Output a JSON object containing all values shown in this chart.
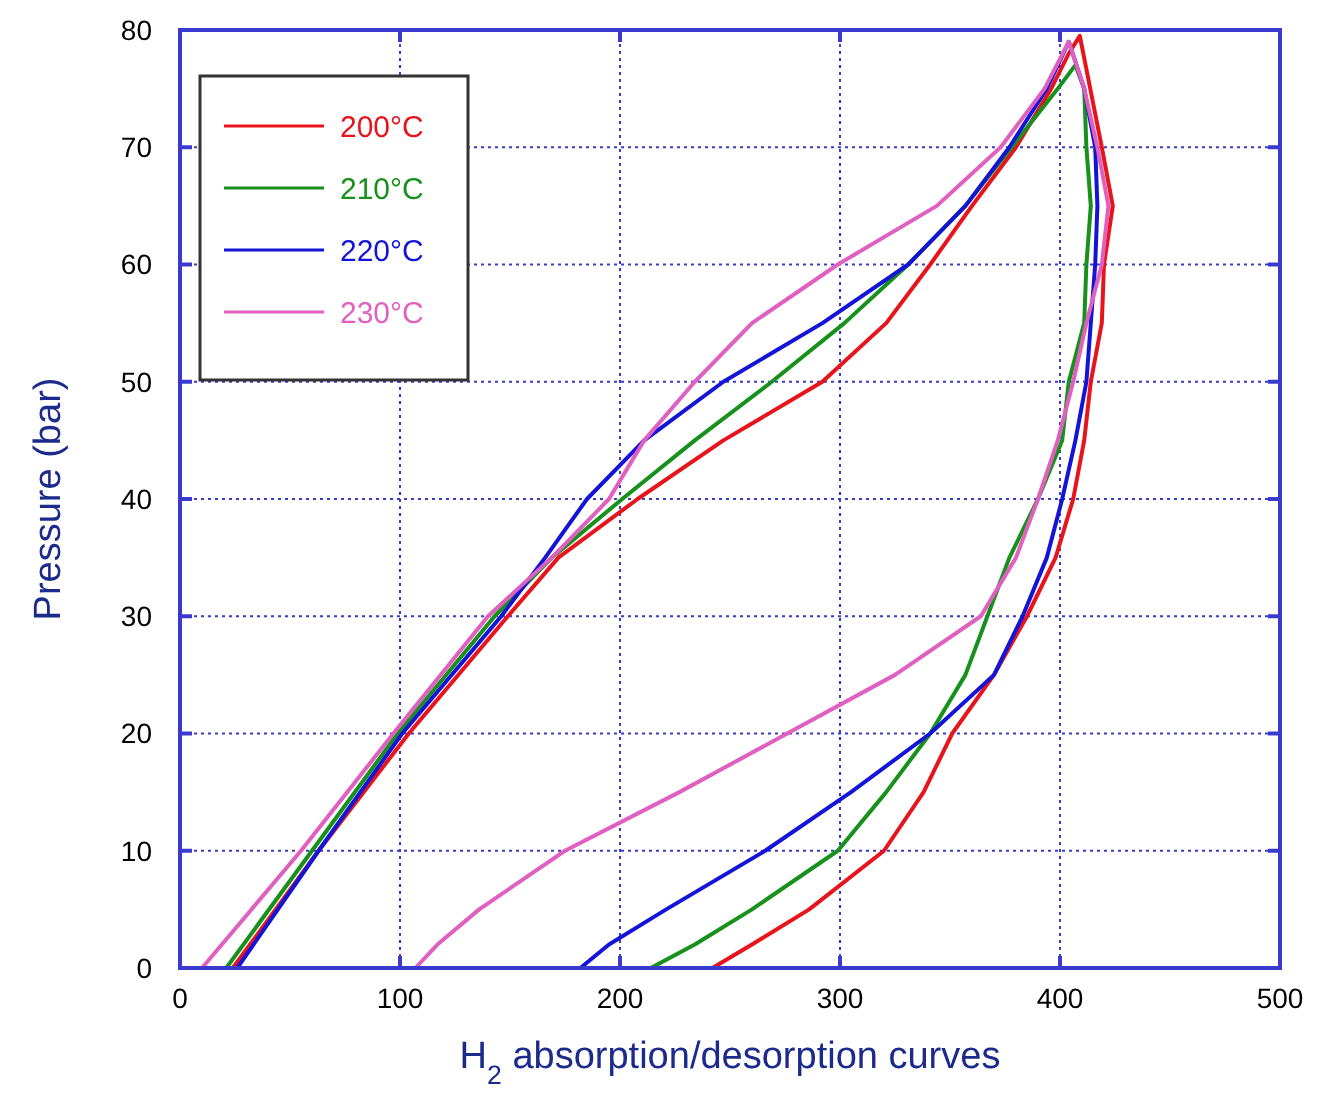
{
  "chart_data": {
    "type": "line",
    "xlabel": "H$_{2}$ absorption/desorption curves",
    "ylabel": "Pressure (bar)",
    "xlim": [
      0,
      500
    ],
    "ylim": [
      0,
      80
    ],
    "xticks": [
      0,
      100,
      200,
      300,
      400,
      500
    ],
    "yticks": [
      0,
      10,
      20,
      30,
      40,
      50,
      60,
      70,
      80
    ],
    "grid": true,
    "legend": "top left",
    "marker": "none",
    "line_style": "solid",
    "series": [
      {
        "name": "200°C",
        "color": "#e8141c",
        "x": [
          24,
          63,
          104,
          149,
          172,
          208,
          247,
          292,
          321,
          341,
          360,
          380,
          396,
          404,
          409,
          419,
          424,
          420,
          419,
          414,
          411,
          406,
          398,
          385,
          370,
          351,
          338,
          320,
          286,
          260,
          242
        ],
        "values": [
          0,
          10,
          20,
          30,
          35,
          40,
          45,
          50,
          55,
          60,
          65,
          70,
          75,
          78,
          79.5,
          70,
          65,
          60,
          55,
          50,
          45,
          40,
          35,
          30,
          25,
          20,
          15,
          10,
          5,
          2,
          0
        ]
      },
      {
        "name": "210°C",
        "color": "#17911c",
        "x": [
          21,
          60,
          99,
          143,
          169,
          201,
          234,
          269,
          302,
          331,
          357,
          378,
          399,
          407,
          411,
          412,
          414,
          412,
          411,
          404,
          401,
          390,
          377,
          367,
          357,
          341,
          321,
          299,
          260,
          234,
          214
        ],
        "values": [
          0,
          10,
          20,
          30,
          35,
          40,
          45,
          50,
          55,
          60,
          65,
          70,
          75,
          77,
          75,
          70,
          65,
          60,
          55,
          50,
          45,
          40,
          35,
          30,
          25,
          20,
          15,
          10,
          5,
          2,
          0
        ]
      },
      {
        "name": "220°C",
        "color": "#1414d8",
        "x": [
          26,
          63,
          101,
          146,
          166,
          185,
          211,
          247,
          292,
          331,
          357,
          377,
          394,
          404,
          411,
          416,
          417,
          416,
          414,
          412,
          407,
          401,
          394,
          383,
          370,
          341,
          305,
          266,
          221,
          195,
          182
        ],
        "values": [
          0,
          10,
          20,
          30,
          35,
          40,
          45,
          50,
          55,
          60,
          65,
          70,
          75,
          79,
          75,
          70,
          65,
          60,
          55,
          50,
          45,
          40,
          35,
          30,
          25,
          20,
          15,
          10,
          5,
          2,
          0
        ]
      },
      {
        "name": "230°C",
        "color": "#e060c0",
        "x": [
          10,
          55,
          97,
          140,
          169,
          195,
          211,
          234,
          260,
          299,
          344,
          373,
          393,
          404,
          411,
          417,
          422,
          419,
          412,
          406,
          399,
          390,
          380,
          364,
          325,
          276,
          227,
          175,
          136,
          117,
          107
        ],
        "values": [
          0,
          10,
          20,
          30,
          35,
          40,
          45,
          50,
          55,
          60,
          65,
          70,
          75,
          79,
          75,
          70,
          65,
          60,
          55,
          50,
          45,
          40,
          35,
          30,
          25,
          20,
          15,
          10,
          5,
          2,
          0
        ]
      }
    ]
  }
}
